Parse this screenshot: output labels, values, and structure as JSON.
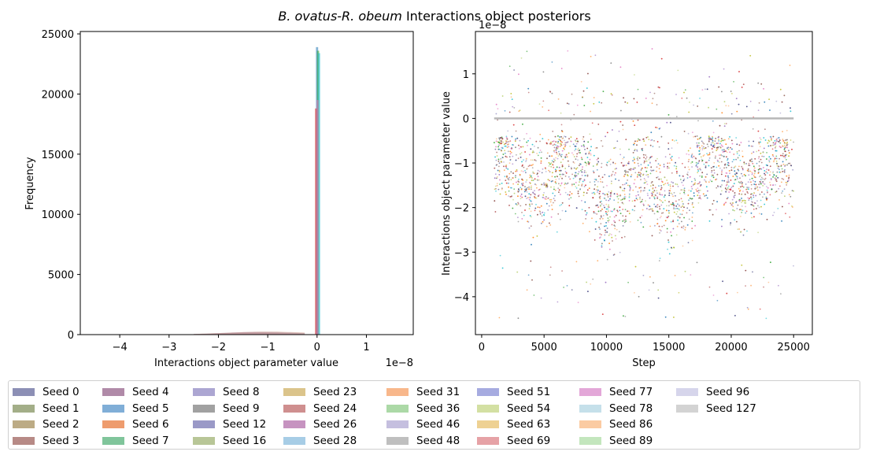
{
  "figure": {
    "title_italic": "B. ovatus-R. obeum",
    "title_rest": " Interactions object posteriors"
  },
  "chart_data": [
    {
      "type": "histogram",
      "xlabel": "Interactions object parameter value",
      "ylabel": "Frequency",
      "x_offset_text": "1e−8",
      "xlim": [
        -4.8,
        1.95
      ],
      "ylim": [
        0,
        25200
      ],
      "xticks": [
        -4,
        -3,
        -2,
        -1,
        0,
        1
      ],
      "xtick_labels": [
        "−4",
        "−3",
        "−2",
        "−1",
        "0",
        "1"
      ],
      "yticks": [
        0,
        5000,
        10000,
        15000,
        20000,
        25000
      ],
      "ytick_labels": [
        "0",
        "5000",
        "10000",
        "15000",
        "20000",
        "25000"
      ],
      "peak_spikes": [
        {
          "x": 0.0,
          "count": 23900,
          "color": "#1f77b4"
        },
        {
          "x": 0.02,
          "count": 23600,
          "color": "#2ca02c"
        },
        {
          "x": 0.04,
          "count": 23400,
          "color": "#17becf"
        },
        {
          "x": -0.02,
          "count": 18800,
          "color": "#d62728"
        },
        {
          "x": 0.01,
          "count": 19500,
          "color": "#e377c2"
        }
      ],
      "broad_distribution": {
        "x_start": -2.5,
        "x_end": -0.25,
        "peak_x": -1.2,
        "peak_count": 240
      }
    },
    {
      "type": "scatter",
      "xlabel": "Step",
      "ylabel": "Interactions object parameter value",
      "y_offset_text": "1e−8",
      "xlim": [
        -500,
        26500
      ],
      "ylim": [
        -4.85,
        1.95
      ],
      "xticks": [
        0,
        5000,
        10000,
        15000,
        20000,
        25000
      ],
      "xtick_labels": [
        "0",
        "5000",
        "10000",
        "15000",
        "20000",
        "25000"
      ],
      "yticks": [
        1,
        0,
        -1,
        -2,
        -3,
        -4
      ],
      "ytick_labels": [
        "1",
        "0",
        "−1",
        "−2",
        "−3",
        "−4"
      ],
      "step_range": [
        1000,
        25000
      ],
      "baseline_value": 0.0,
      "bulk_range": [
        -3.0,
        -0.4
      ],
      "min_value": -4.5,
      "max_value": 1.6
    }
  ],
  "legend": [
    {
      "label": "Seed 0",
      "color": "#8c8fb5"
    },
    {
      "label": "Seed 1",
      "color": "#a3ae88"
    },
    {
      "label": "Seed 2",
      "color": "#bcab85"
    },
    {
      "label": "Seed 3",
      "color": "#b78a86"
    },
    {
      "label": "Seed 4",
      "color": "#b08aa8"
    },
    {
      "label": "Seed 5",
      "color": "#80aed7"
    },
    {
      "label": "Seed 6",
      "color": "#ee9c6e"
    },
    {
      "label": "Seed 7",
      "color": "#80c59b"
    },
    {
      "label": "Seed 8",
      "color": "#aca6d2"
    },
    {
      "label": "Seed 9",
      "color": "#a1a1a1"
    },
    {
      "label": "Seed 12",
      "color": "#9a99c7"
    },
    {
      "label": "Seed 16",
      "color": "#b8c697"
    },
    {
      "label": "Seed 23",
      "color": "#dbc48b"
    },
    {
      "label": "Seed 24",
      "color": "#cf8f8f"
    },
    {
      "label": "Seed 26",
      "color": "#c693c0"
    },
    {
      "label": "Seed 28",
      "color": "#a7cde6"
    },
    {
      "label": "Seed 31",
      "color": "#f8b78b"
    },
    {
      "label": "Seed 36",
      "color": "#acd9a7"
    },
    {
      "label": "Seed 46",
      "color": "#c5bfdf"
    },
    {
      "label": "Seed 48",
      "color": "#bfbfbf"
    },
    {
      "label": "Seed 51",
      "color": "#a6abe0"
    },
    {
      "label": "Seed 54",
      "color": "#d3e0a3"
    },
    {
      "label": "Seed 63",
      "color": "#eed193"
    },
    {
      "label": "Seed 69",
      "color": "#e6a2a6"
    },
    {
      "label": "Seed 77",
      "color": "#e3a7d8"
    },
    {
      "label": "Seed 78",
      "color": "#c5e0ea"
    },
    {
      "label": "Seed 86",
      "color": "#fbcba2"
    },
    {
      "label": "Seed 89",
      "color": "#c3e6bd"
    },
    {
      "label": "Seed 96",
      "color": "#d6d5eb"
    },
    {
      "label": "Seed 127",
      "color": "#d3d3d3"
    }
  ],
  "scatter_palette": [
    "#843c39",
    "#d62728",
    "#ff7f0e",
    "#e377c2",
    "#9467bd",
    "#2ca02c",
    "#1f77b4",
    "#8c564b",
    "#bcbd22",
    "#17becf",
    "#7f7f7f",
    "#393b79",
    "#ad494a",
    "#fdae6b",
    "#b5cf6b",
    "#9e9ac8"
  ]
}
